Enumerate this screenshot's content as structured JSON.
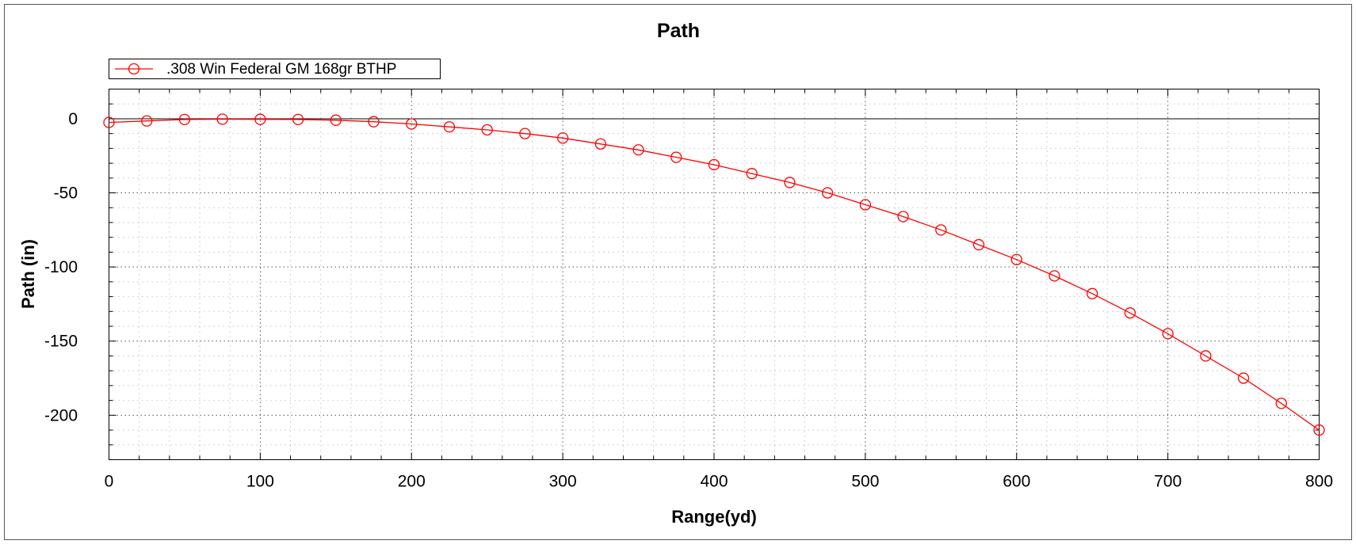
{
  "chart_data": {
    "type": "line",
    "title": "Path",
    "xlabel": "Range(yd)",
    "ylabel": "Path (in)",
    "xlim": [
      0,
      800
    ],
    "ylim": [
      -230,
      20
    ],
    "x_ticks": [
      0,
      100,
      200,
      300,
      400,
      500,
      600,
      700,
      800
    ],
    "y_ticks": [
      0,
      -50,
      -100,
      -150,
      -200
    ],
    "grid": "dotted major and minor",
    "legend_position": "top-left",
    "series": [
      {
        "name": ".308 Win Federal GM 168gr BTHP",
        "color": "#ff0000",
        "marker": "open-circle",
        "x": [
          0,
          25,
          50,
          75,
          100,
          125,
          150,
          175,
          200,
          225,
          250,
          275,
          300,
          325,
          350,
          375,
          400,
          425,
          450,
          475,
          500,
          525,
          550,
          575,
          600,
          625,
          650,
          675,
          700,
          725,
          750,
          775,
          800
        ],
        "y": [
          -2.5,
          -1.5,
          -0.5,
          -0.3,
          -0.4,
          -0.5,
          -1.0,
          -2.0,
          -3.5,
          -5.5,
          -7.5,
          -10.0,
          -13.0,
          -17.0,
          -21.0,
          -26.0,
          -31.0,
          -37.0,
          -43.0,
          -50.0,
          -58.0,
          -66.0,
          -75.0,
          -85.0,
          -95.0,
          -106.0,
          -118.0,
          -131.0,
          -145.0,
          -160.0,
          -175.0,
          -192.0,
          -210.0
        ]
      }
    ]
  }
}
